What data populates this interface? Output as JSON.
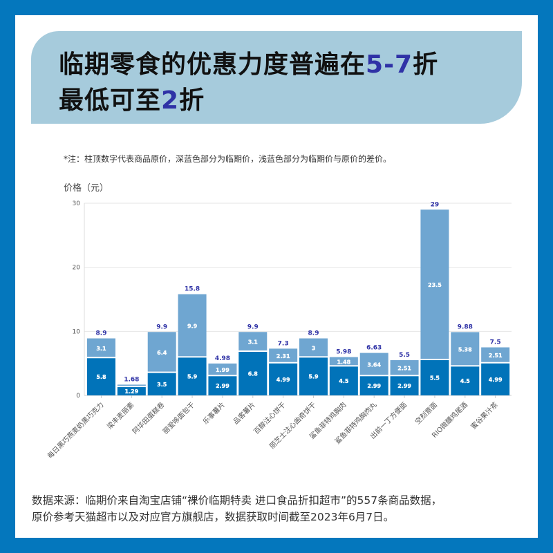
{
  "title": {
    "line1_prefix": "临期零食的优惠力度普遍在",
    "line1_highlight": "5-7",
    "line1_suffix": "折",
    "line2_prefix": "最低可至",
    "line2_highlight": "2",
    "line2_suffix": "折"
  },
  "note": "*注：柱顶数字代表商品原价，深蓝色部分为临期价，浅蓝色部分为临期价与原价的差价。",
  "footer": {
    "line1": "数据来源：临期价来自淘宝店铺“裸价临期特卖 进口食品折扣超市”的557条商品数据，",
    "line2": "原价参考天猫超市以及对应官方旗舰店，数据获取时间截至2023年6月7日。"
  },
  "colors": {
    "dark": "#0173b9",
    "light": "#6fa6d1",
    "total_label": "#2f32a6",
    "border": "#0477bd",
    "banner": "#a6cbdc"
  },
  "chart_data": {
    "type": "bar",
    "stacked": true,
    "ylabel": "价格（元）",
    "ylim": [
      0,
      30
    ],
    "yticks": [
      0,
      10,
      20,
      30
    ],
    "grid": true,
    "categories": [
      "每日黑巧燕麦奶黑巧克力",
      "梁丰麦丽素",
      "阿华田蛋糕卷",
      "丽爱哆面包干",
      "乐事薯片",
      "品客薯片",
      "百醇注心饼干",
      "丽芝士注心曲奇饼干",
      "鲨鱼菲特鸡胸肉",
      "鲨鱼菲特鸡胸肉丸",
      "出前一丁方便面",
      "空刻意面",
      "RIO微醺鸡尾酒",
      "蜜谷果汁茶"
    ],
    "series": [
      {
        "name": "临期价",
        "values": [
          5.8,
          1.29,
          3.5,
          5.9,
          2.99,
          6.8,
          4.99,
          5.9,
          4.5,
          2.99,
          2.99,
          5.5,
          4.5,
          4.99
        ]
      },
      {
        "name": "差价",
        "values": [
          3.1,
          0.39,
          6.4,
          9.9,
          1.99,
          3.1,
          2.31,
          3,
          1.48,
          3.64,
          2.51,
          23.5,
          5.38,
          2.51
        ],
        "labels": [
          "3.1",
          "",
          "6.4",
          "9.9",
          "1.99",
          "3.1",
          "2.31",
          "3",
          "1.48",
          "3.64",
          "2.51",
          "23.5",
          "5.38",
          "2.51"
        ]
      }
    ],
    "totals": [
      "8.9",
      "1.68",
      "9.9",
      "15.8",
      "4.98",
      "9.9",
      "7.3",
      "8.9",
      "5.98",
      "6.63",
      "5.5",
      "29",
      "9.88",
      "7.5"
    ]
  }
}
